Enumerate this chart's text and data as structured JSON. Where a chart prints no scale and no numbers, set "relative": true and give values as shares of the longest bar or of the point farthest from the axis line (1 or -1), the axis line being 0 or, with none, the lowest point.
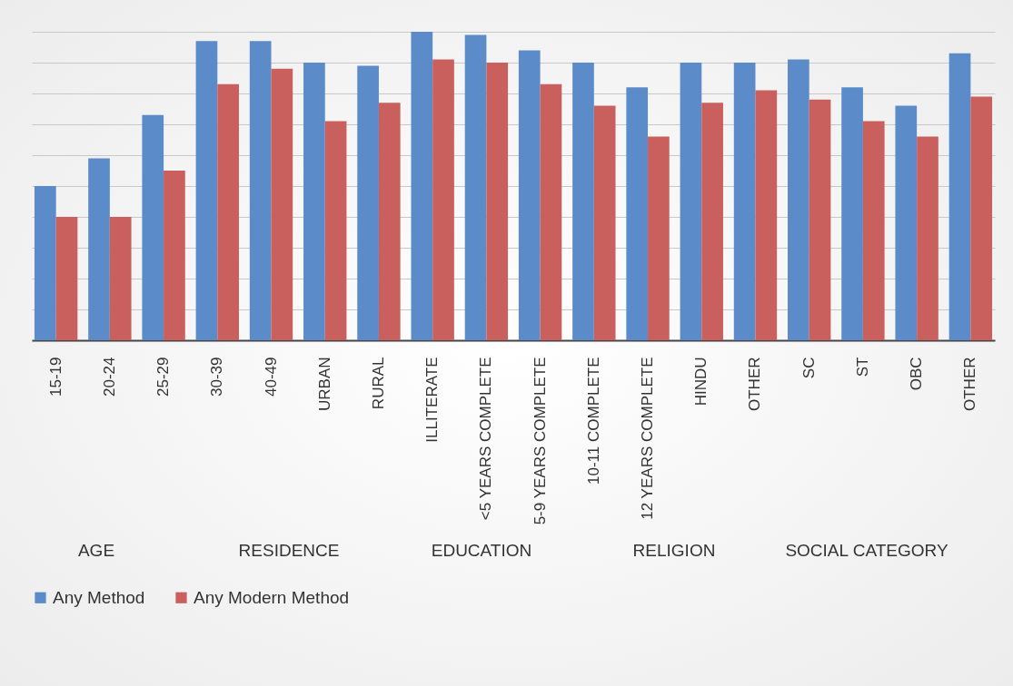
{
  "chart_data": {
    "type": "bar",
    "relative": true,
    "grid": "y",
    "legend": "bottom",
    "categories": [
      "15-19",
      "20-24",
      "25-29",
      "30-39",
      "40-49",
      "URBAN",
      "RURAL",
      "ILLITERATE",
      "<5 YEARS COMPLETE",
      "5-9 YEARS COMPLETE",
      "10-11 COMPLETE",
      "12 YEARS COMPLETE",
      "HINDU",
      "OTHER",
      "SC",
      "ST",
      "OBC",
      "OTHER"
    ],
    "series": [
      {
        "name": "Any Method",
        "color": "#5b8bc9",
        "values": [
          0.5,
          0.59,
          0.73,
          0.97,
          0.97,
          0.9,
          0.89,
          1,
          0.99,
          0.94,
          0.9,
          0.82,
          0.9,
          0.9,
          0.91,
          0.82,
          0.76,
          0.93
        ]
      },
      {
        "name": "Any Modern Method",
        "color": "#c9605d",
        "values": [
          0.4,
          0.4,
          0.55,
          0.83,
          0.88,
          0.71,
          0.77,
          0.91,
          0.9,
          0.83,
          0.76,
          0.66,
          0.77,
          0.81,
          0.78,
          0.71,
          0.66,
          0.79
        ]
      }
    ],
    "annotations": [
      "AGE",
      "RESIDENCE",
      "EDUCATION",
      "RELIGION",
      "SOCIAL CATEGORY"
    ]
  }
}
